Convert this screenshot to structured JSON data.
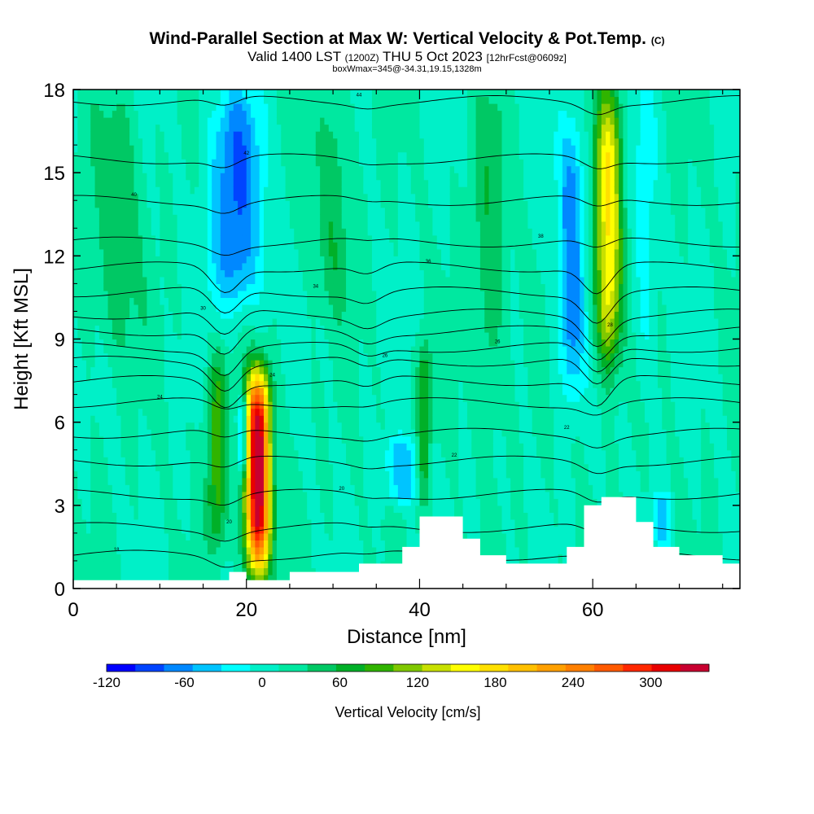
{
  "header": {
    "title": "Wind-Parallel Section at Max W: Vertical Velocity & Pot.Temp.",
    "title_suffix": "(C)",
    "subtitle_a": "Valid 1400 LST",
    "subtitle_b": "(1200Z)",
    "subtitle_c": "THU 5 Oct 2023",
    "subtitle_d": "[12hrFcst@0609z]",
    "subtitle2": "boxWmax=345@-34.31,19.15,1328m"
  },
  "chart_data": {
    "type": "heatmap",
    "xlabel": "Distance [nm]",
    "ylabel": "Height [Kft MSL]",
    "xlim": [
      0,
      77
    ],
    "ylim": [
      0,
      18
    ],
    "x_ticks": [
      0,
      20,
      40,
      60
    ],
    "y_ticks": [
      0,
      3,
      6,
      9,
      12,
      15,
      18
    ],
    "colorbar": {
      "label": "Vertical Velocity [cm/s]",
      "min": -120,
      "max": 345,
      "tick_values": [
        -120,
        -60,
        0,
        60,
        120,
        180,
        240,
        300
      ],
      "colors": [
        "#0000ff",
        "#0044ff",
        "#0088ff",
        "#00c4ff",
        "#00ffff",
        "#00f0c8",
        "#00e8a0",
        "#00c864",
        "#00b028",
        "#30b400",
        "#80c800",
        "#c8e000",
        "#ffff00",
        "#ffe000",
        "#ffc000",
        "#ffa000",
        "#ff8000",
        "#ff5a00",
        "#ff2800",
        "#e80000",
        "#c80030"
      ]
    },
    "terrain": [
      {
        "x": 0,
        "h": 0.3
      },
      {
        "x": 18,
        "h": 0.3
      },
      {
        "x": 18,
        "h": 0.6
      },
      {
        "x": 20,
        "h": 0.6
      },
      {
        "x": 20,
        "h": 0.3
      },
      {
        "x": 25,
        "h": 0.6
      },
      {
        "x": 32,
        "h": 0.6
      },
      {
        "x": 33,
        "h": 0.9
      },
      {
        "x": 36,
        "h": 0.9
      },
      {
        "x": 38,
        "h": 1.5
      },
      {
        "x": 40,
        "h": 2.6
      },
      {
        "x": 42,
        "h": 2.6
      },
      {
        "x": 45,
        "h": 1.8
      },
      {
        "x": 47,
        "h": 1.2
      },
      {
        "x": 50,
        "h": 0.9
      },
      {
        "x": 56,
        "h": 0.9
      },
      {
        "x": 57,
        "h": 1.5
      },
      {
        "x": 59,
        "h": 3.0
      },
      {
        "x": 61,
        "h": 3.3
      },
      {
        "x": 63,
        "h": 3.3
      },
      {
        "x": 65,
        "h": 2.4
      },
      {
        "x": 67,
        "h": 1.5
      },
      {
        "x": 70,
        "h": 1.2
      },
      {
        "x": 74,
        "h": 1.2
      },
      {
        "x": 75,
        "h": 0.9
      },
      {
        "x": 77,
        "h": 0.6
      }
    ],
    "features": [
      {
        "x": 21.3,
        "y0": 0.5,
        "y1": 7.8,
        "w": 1.4,
        "value": 345
      },
      {
        "x": 18.8,
        "y0": 10.0,
        "y1": 18.0,
        "w": 3.0,
        "value": -90
      },
      {
        "x": 19.6,
        "y0": 4.0,
        "y1": 7.0,
        "w": 0.6,
        "value": -100
      },
      {
        "x": 16.6,
        "y0": 1.5,
        "y1": 8.5,
        "w": 1.2,
        "value": 80
      },
      {
        "x": 38.0,
        "y0": 3.0,
        "y1": 5.5,
        "w": 2.0,
        "value": -60
      },
      {
        "x": 40.5,
        "y0": 3.0,
        "y1": 9.0,
        "w": 0.8,
        "value": 70
      },
      {
        "x": 57.5,
        "y0": 7.0,
        "y1": 17.0,
        "w": 1.5,
        "value": -80
      },
      {
        "x": 61.8,
        "y0": 8.0,
        "y1": 18.0,
        "w": 1.5,
        "value": 160
      },
      {
        "x": 66.0,
        "y0": 7.0,
        "y1": 18.0,
        "w": 1.5,
        "value": -30
      },
      {
        "x": 68.0,
        "y0": 1.5,
        "y1": 3.5,
        "w": 1.0,
        "value": -60
      },
      {
        "x": 30.0,
        "y0": 10.0,
        "y1": 18.0,
        "w": 2.0,
        "value": 40
      },
      {
        "x": 5.0,
        "y0": 8.0,
        "y1": 18.0,
        "w": 3.0,
        "value": 35
      },
      {
        "x": 48.0,
        "y0": 6.0,
        "y1": 18.0,
        "w": 2.0,
        "value": 40
      }
    ],
    "contours": [
      {
        "base": 1.2,
        "label": "18"
      },
      {
        "base": 2.2,
        "label": "20"
      },
      {
        "base": 3.4,
        "label": "20"
      },
      {
        "base": 4.6,
        "label": "22"
      },
      {
        "base": 5.6,
        "label": "22"
      },
      {
        "base": 6.7,
        "label": "24"
      },
      {
        "base": 7.5,
        "label": "24"
      },
      {
        "base": 8.2,
        "label": "26"
      },
      {
        "base": 8.7,
        "label": "26"
      },
      {
        "base": 9.3,
        "label": "28"
      },
      {
        "base": 9.9,
        "label": "30"
      },
      {
        "base": 10.7,
        "label": "34"
      },
      {
        "base": 11.6,
        "label": "36"
      },
      {
        "base": 12.5,
        "label": "38"
      },
      {
        "base": 14.0,
        "label": "40"
      },
      {
        "base": 15.5,
        "label": "42"
      },
      {
        "base": 17.6,
        "label": "44"
      }
    ]
  }
}
